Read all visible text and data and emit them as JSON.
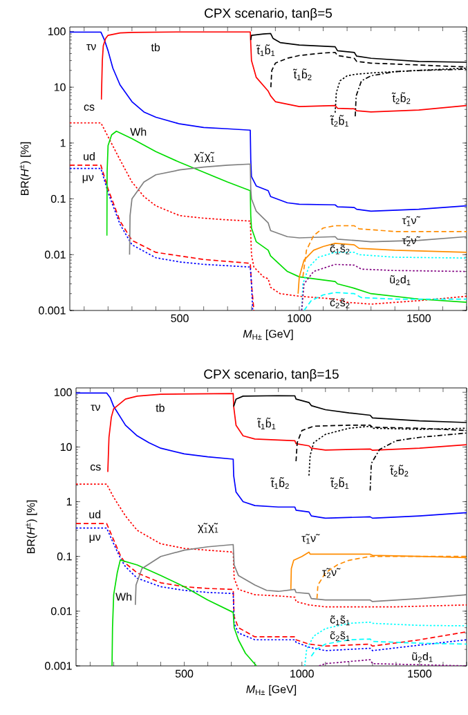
{
  "chart_data": [
    {
      "type": "line",
      "title": "CPX scenario, tanβ=5",
      "xlabel": "*M*$_{H±}$  [GeV]",
      "ylabel": "BR(*H*$^{±}$) [%]",
      "log": true,
      "xlim": [
        40,
        1700
      ],
      "ylim": [
        0.001,
        120
      ],
      "xticks": [
        {
          "value": 100,
          "label": null
        },
        {
          "value": 200,
          "label": null
        },
        {
          "value": 300,
          "label": null
        },
        {
          "value": 400,
          "label": null
        },
        500,
        {
          "value": 600,
          "label": null
        },
        {
          "value": 700,
          "label": null
        },
        {
          "value": 800,
          "label": null
        },
        {
          "value": 900,
          "label": null
        },
        1000,
        {
          "value": 1100,
          "label": null
        },
        {
          "value": 1200,
          "label": null
        },
        {
          "value": 1300,
          "label": null
        },
        {
          "value": 1400,
          "label": null
        },
        1500,
        {
          "value": 1600,
          "label": null
        },
        {
          "value": 1700,
          "label": null
        }
      ],
      "yticks": [
        0.001,
        0.01,
        0.1,
        1,
        10,
        100
      ],
      "series": [
        {
          "color": "#0000ff",
          "line_style": "solid",
          "x": [
            40,
            170,
            185,
            200,
            220,
            250,
            300,
            350,
            400,
            500,
            600,
            700,
            795,
            797,
            800,
            820,
            870,
            880,
            950,
            1000,
            1150,
            1160,
            1230,
            1240,
            1300,
            1500,
            1700
          ],
          "values": [
            97,
            97,
            70,
            45,
            22,
            11,
            5.5,
            3.6,
            2.9,
            2.2,
            1.9,
            1.8,
            1.7,
            0.5,
            0.25,
            0.17,
            0.14,
            0.11,
            0.085,
            0.08,
            0.078,
            0.072,
            0.07,
            0.065,
            0.06,
            0.065,
            0.075
          ]
        },
        {
          "color": "#ff0000",
          "line_style": "solid",
          "x": [
            172,
            176,
            180,
            190,
            200,
            250,
            300,
            500,
            795,
            797,
            800,
            820,
            870,
            880,
            900,
            1000,
            1150,
            1160,
            1230,
            1240,
            1300,
            1500,
            1700
          ],
          "values": [
            6,
            30,
            55,
            75,
            85,
            94,
            96,
            98,
            98,
            60,
            30,
            15,
            8.5,
            7,
            5.5,
            4.5,
            4.7,
            4.2,
            4.1,
            3.8,
            3.6,
            3.9,
            4.7
          ]
        },
        {
          "color": "#000000",
          "line_style": "solid",
          "x": [
            797,
            800,
            850,
            880,
            890,
            920,
            1000,
            1150,
            1160,
            1230,
            1240,
            1300,
            1500,
            1700
          ],
          "values": [
            70,
            85,
            90,
            92,
            75,
            63,
            57,
            53,
            45,
            42,
            36,
            33,
            29,
            28
          ]
        },
        {
          "color": "#000000",
          "line_style": "dashed",
          "x": [
            881,
            885,
            900,
            950,
            1000,
            1100,
            1150,
            1160,
            1230,
            1240,
            1300,
            1500,
            1700
          ],
          "values": [
            10,
            20,
            27,
            33,
            37,
            41,
            42,
            37,
            33,
            29,
            27,
            25,
            23
          ]
        },
        {
          "color": "#000000",
          "line_style": "dotted",
          "x": [
            1150,
            1155,
            1170,
            1200,
            1234,
            1300,
            1500,
            1700
          ],
          "values": [
            3.5,
            8,
            13,
            16,
            17,
            18,
            20,
            22
          ]
        },
        {
          "color": "#000000",
          "line_style": "dashdot",
          "x": [
            1234,
            1238,
            1260,
            1300,
            1400,
            1500,
            1700
          ],
          "values": [
            3,
            7,
            13,
            16,
            19,
            20,
            21
          ]
        },
        {
          "color": "#ff0000",
          "line_style": "dotted",
          "x": [
            40,
            170,
            200,
            250,
            300,
            350,
            400,
            500,
            600,
            700,
            795,
            800,
            810,
            850,
            870,
            880,
            920,
            1000,
            1150,
            1200,
            1300,
            1500,
            1700
          ],
          "values": [
            2.3,
            2.3,
            1.3,
            0.5,
            0.2,
            0.11,
            0.075,
            0.05,
            0.045,
            0.042,
            0.04,
            0.01,
            0.006,
            0.004,
            0.0037,
            0.0026,
            0.002,
            0.0018,
            0.0016,
            0.0014,
            0.0013,
            0.0015,
            0.0018
          ]
        },
        {
          "color": "#ff0000",
          "line_style": "dashed",
          "x": [
            40,
            170,
            200,
            250,
            300,
            400,
            500,
            600,
            795,
            800,
            810
          ],
          "values": [
            0.4,
            0.4,
            0.15,
            0.04,
            0.018,
            0.011,
            0.0095,
            0.0082,
            0.007,
            0.003,
            0.001
          ]
        },
        {
          "color": "#0000ff",
          "line_style": "dotted",
          "x": [
            40,
            170,
            200,
            250,
            300,
            400,
            500,
            600,
            795,
            800,
            805
          ],
          "values": [
            0.35,
            0.35,
            0.13,
            0.035,
            0.015,
            0.0088,
            0.0074,
            0.0067,
            0.006,
            0.003,
            0.001
          ]
        },
        {
          "color": "#00dd00",
          "line_style": "solid",
          "x": [
            195,
            196,
            200,
            215,
            235,
            300,
            400,
            500,
            600,
            700,
            795,
            797,
            800,
            820,
            870,
            880,
            950,
            1000,
            1150,
            1160,
            1230,
            1300,
            1500,
            1700
          ],
          "values": [
            0.022,
            0.3,
            0.9,
            1.4,
            1.63,
            1.2,
            0.7,
            0.45,
            0.3,
            0.2,
            0.14,
            0.05,
            0.03,
            0.017,
            0.012,
            0.0095,
            0.005,
            0.004,
            0.0033,
            0.003,
            0.0025,
            0.002,
            0.0016,
            0.0014
          ]
        },
        {
          "color": "#808080",
          "line_style": "solid",
          "x": [
            290,
            292,
            300,
            350,
            400,
            500,
            600,
            700,
            795,
            797,
            800,
            820,
            870,
            880,
            950,
            1000,
            1150,
            1160,
            1230,
            1300,
            1500,
            1700
          ],
          "values": [
            0.01,
            0.05,
            0.1,
            0.2,
            0.27,
            0.33,
            0.37,
            0.4,
            0.42,
            0.15,
            0.1,
            0.06,
            0.037,
            0.027,
            0.021,
            0.02,
            0.021,
            0.019,
            0.018,
            0.017,
            0.018,
            0.021
          ]
        },
        {
          "color": "#ff8c00",
          "line_style": "dashed",
          "x": [
            1015,
            1030,
            1060,
            1100,
            1150,
            1230,
            1250,
            1400,
            1700
          ],
          "values": [
            0.004,
            0.012,
            0.022,
            0.03,
            0.033,
            0.033,
            0.029,
            0.026,
            0.026
          ]
        },
        {
          "color": "#ff8c00",
          "line_style": "solid",
          "x": [
            995,
            1000,
            1020,
            1060,
            1100,
            1150,
            1230,
            1250,
            1400,
            1700
          ],
          "values": [
            0.002,
            0.004,
            0.008,
            0.012,
            0.014,
            0.016,
            0.015,
            0.013,
            0.012,
            0.011
          ]
        },
        {
          "color": "#00ffff",
          "line_style": "dotted",
          "x": [
            1010,
            1015,
            1040,
            1080,
            1150,
            1230,
            1250,
            1400,
            1700
          ],
          "values": [
            0.001,
            0.003,
            0.006,
            0.009,
            0.011,
            0.011,
            0.01,
            0.009,
            0.0087
          ]
        },
        {
          "color": "#800080",
          "line_style": "dotted",
          "x": [
            1010,
            1020,
            1060,
            1150,
            1230,
            1260,
            1400,
            1700
          ],
          "values": [
            0.001,
            0.003,
            0.005,
            0.0067,
            0.0065,
            0.0055,
            0.0052,
            0.005
          ]
        },
        {
          "color": "#00ffff",
          "line_style": "dashed",
          "x": [
            1020,
            1050,
            1100,
            1150,
            1230,
            1260,
            1400,
            1700
          ],
          "values": [
            0.001,
            0.0015,
            0.0019,
            0.0021,
            0.002,
            0.0017,
            0.0016,
            0.0016
          ]
        }
      ],
      "annotations": [
        "τν",
        "tb",
        "t̃$_{1}$b̃$_{1}$",
        "t̃$_{1}$b̃$_{2}$",
        "t̃$_{2}$b̃$_{2}$",
        "t̃$_{2}$b̃$_{1}$",
        "cs",
        "Wh",
        "χ̃$_{1}$χ̃$_{1}$",
        "ud",
        "μν",
        "τ̃$_{1}$ν̃",
        "τ̃$_{2}$ν̃",
        "c̃$_{1}$s̃$_{2}$",
        "ũ$_{2}$d$_{1}$",
        "c̃$_{2}$s̃$_{2}$"
      ]
    },
    {
      "type": "line",
      "title": "CPX scenario, tanβ=15",
      "xlabel": "*M*$_{H±}$  [GeV]",
      "ylabel": "BR(*H*$^{±}$) [%]",
      "log": true,
      "xlim": [
        40,
        1700
      ],
      "ylim": [
        0.001,
        120
      ],
      "xticks": [
        {
          "value": 100,
          "label": null
        },
        {
          "value": 200,
          "label": null
        },
        {
          "value": 300,
          "label": null
        },
        {
          "value": 400,
          "label": null
        },
        500,
        {
          "value": 600,
          "label": null
        },
        {
          "value": 700,
          "label": null
        },
        {
          "value": 800,
          "label": null
        },
        {
          "value": 900,
          "label": null
        },
        1000,
        {
          "value": 1100,
          "label": null
        },
        {
          "value": 1200,
          "label": null
        },
        {
          "value": 1300,
          "label": null
        },
        {
          "value": 1400,
          "label": null
        },
        1500,
        {
          "value": 1600,
          "label": null
        },
        {
          "value": 1700,
          "label": null
        }
      ],
      "yticks": [
        0.001,
        0.01,
        0.1,
        1,
        10,
        100
      ],
      "series": [
        {
          "color": "#0000ff",
          "line_style": "solid",
          "x": [
            40,
            170,
            185,
            200,
            250,
            300,
            350,
            400,
            500,
            600,
            708,
            710,
            720,
            750,
            800,
            900,
            970,
            975,
            1030,
            1040,
            1100,
            1290,
            1300,
            1500,
            1700
          ],
          "values": [
            97,
            97,
            80,
            55,
            25,
            16,
            12,
            9.5,
            7.5,
            6.6,
            6,
            3,
            1.5,
            1,
            0.85,
            0.8,
            0.8,
            0.7,
            0.65,
            0.55,
            0.5,
            0.53,
            0.5,
            0.55,
            0.63
          ]
        },
        {
          "color": "#ff0000",
          "line_style": "solid",
          "x": [
            175,
            180,
            190,
            200,
            250,
            300,
            400,
            708,
            710,
            720,
            750,
            800,
            970,
            975,
            1030,
            1040,
            1100,
            1290,
            1300,
            1500,
            1700
          ],
          "values": [
            3.5,
            15,
            35,
            50,
            75,
            85,
            92,
            95,
            55,
            25,
            16,
            14,
            13,
            11.5,
            10.5,
            9.5,
            8.8,
            9.2,
            8.7,
            9.5,
            11
          ]
        },
        {
          "color": "#000000",
          "line_style": "solid",
          "x": [
            710,
            720,
            750,
            900,
            970,
            975,
            1030,
            1040,
            1100,
            1200,
            1290,
            1300,
            1500,
            1700
          ],
          "values": [
            55,
            75,
            85,
            87,
            86,
            75,
            65,
            57,
            48,
            42,
            38,
            34,
            30,
            28
          ]
        },
        {
          "color": "#000000",
          "line_style": "dashed",
          "x": [
            975,
            980,
            1000,
            1050,
            1200,
            1290,
            1300,
            1500,
            1700
          ],
          "values": [
            5.5,
            12,
            20,
            24,
            25,
            25,
            23,
            22,
            20
          ]
        },
        {
          "color": "#000000",
          "line_style": "dotted",
          "x": [
            1030,
            1035,
            1050,
            1100,
            1200,
            1290,
            1300,
            1500,
            1700
          ],
          "values": [
            3,
            7,
            12,
            17,
            22,
            24,
            22,
            21,
            22
          ]
        },
        {
          "color": "#000000",
          "line_style": "dashdot",
          "x": [
            1290,
            1295,
            1330,
            1400,
            1500,
            1700
          ],
          "values": [
            1.6,
            5,
            9,
            13,
            15,
            18
          ]
        },
        {
          "color": "#ff0000",
          "line_style": "dotted",
          "x": [
            40,
            170,
            200,
            250,
            300,
            400,
            500,
            600,
            708,
            712,
            730,
            800,
            900,
            970,
            975,
            1030,
            1100,
            1290,
            1400,
            1700
          ],
          "values": [
            2.1,
            2.1,
            1.2,
            0.55,
            0.3,
            0.17,
            0.14,
            0.13,
            0.12,
            0.04,
            0.025,
            0.02,
            0.019,
            0.018,
            0.015,
            0.013,
            0.012,
            0.012,
            0.012,
            0.013
          ]
        },
        {
          "color": "#ff0000",
          "line_style": "dashed",
          "x": [
            40,
            170,
            200,
            230,
            250,
            300,
            400,
            500,
            600,
            708,
            712,
            730,
            800,
            970,
            975,
            1030,
            1100,
            1290,
            1300,
            1500,
            1700
          ],
          "values": [
            0.4,
            0.4,
            0.2,
            0.1,
            0.075,
            0.05,
            0.033,
            0.028,
            0.026,
            0.025,
            0.008,
            0.005,
            0.0034,
            0.0034,
            0.003,
            0.0025,
            0.0023,
            0.0025,
            0.0023,
            0.003,
            0.0042
          ]
        },
        {
          "color": "#0000ff",
          "line_style": "dotted",
          "x": [
            40,
            170,
            200,
            230,
            250,
            300,
            400,
            500,
            600,
            708,
            712,
            730,
            800,
            970,
            975,
            1030,
            1100,
            1290,
            1300,
            1500,
            1700
          ],
          "values": [
            0.33,
            0.33,
            0.17,
            0.09,
            0.065,
            0.04,
            0.028,
            0.024,
            0.022,
            0.021,
            0.006,
            0.004,
            0.003,
            0.003,
            0.0027,
            0.0022,
            0.0019,
            0.0021,
            0.0019,
            0.0024,
            0.003
          ]
        },
        {
          "color": "#00dd00",
          "line_style": "solid",
          "x": [
            193,
            195,
            200,
            215,
            228,
            300,
            400,
            500,
            600,
            708,
            712,
            730,
            760,
            807
          ],
          "values": [
            0.001,
            0.005,
            0.02,
            0.05,
            0.086,
            0.07,
            0.045,
            0.028,
            0.016,
            0.0095,
            0.005,
            0.003,
            0.0017,
            0.001
          ]
        },
        {
          "color": "#808080",
          "line_style": "solid",
          "x": [
            292,
            295,
            320,
            400,
            500,
            600,
            708,
            712,
            730,
            800,
            850,
            900,
            970,
            975,
            1030,
            1040,
            1100,
            1290,
            1300,
            1500,
            1700
          ],
          "values": [
            0.013,
            0.03,
            0.06,
            0.1,
            0.13,
            0.15,
            0.165,
            0.07,
            0.045,
            0.03,
            0.024,
            0.023,
            0.025,
            0.022,
            0.021,
            0.017,
            0.016,
            0.016,
            0.015,
            0.017,
            0.02
          ]
        },
        {
          "color": "#ff8c00",
          "line_style": "solid",
          "x": [
            953,
            955,
            965,
            1000,
            1030,
            1035,
            1290,
            1300,
            1500,
            1700
          ],
          "values": [
            0.025,
            0.06,
            0.085,
            0.1,
            0.12,
            0.11,
            0.11,
            0.105,
            0.1,
            0.095
          ]
        },
        {
          "color": "#ff8c00",
          "line_style": "dashed",
          "x": [
            1064,
            1068,
            1100,
            1150,
            1200,
            1290,
            1400,
            1700
          ],
          "values": [
            0.017,
            0.03,
            0.05,
            0.07,
            0.085,
            0.1,
            0.1,
            0.1
          ]
        },
        {
          "color": "#00ffff",
          "line_style": "dotted",
          "x": [
            1012,
            1020,
            1050,
            1100,
            1200,
            1290,
            1300,
            1500,
            1700
          ],
          "values": [
            0.001,
            0.002,
            0.0035,
            0.0048,
            0.006,
            0.0063,
            0.006,
            0.0055,
            0.0054
          ]
        },
        {
          "color": "#00ffff",
          "line_style": "dashed",
          "x": [
            1040,
            1060,
            1100,
            1200,
            1290,
            1300,
            1500,
            1700
          ],
          "values": [
            0.0015,
            0.002,
            0.0025,
            0.003,
            0.0031,
            0.0028,
            0.0026,
            0.0025
          ]
        },
        {
          "color": "#800080",
          "line_style": "dotted",
          "x": [
            1073,
            1100,
            1200,
            1290,
            1300,
            1500,
            1700
          ],
          "values": [
            0.001,
            0.0011,
            0.0012,
            0.0013,
            0.0011,
            0.00105,
            0.001
          ]
        }
      ],
      "annotations": [
        "τν",
        "tb",
        "t̃$_{1}$b̃$_{1}$",
        "t̃$_{1}$b̃$_{2}$",
        "t̃$_{2}$b̃$_{1}$",
        "t̃$_{2}$b̃$_{2}$",
        "cs",
        "ud",
        "χ̃$_{1}$χ̃$_{1}$",
        "μν",
        "Wh",
        "τ̃$_{1}$ν̃",
        "τ̃$_{2}$ν̃",
        "c̃$_{1}$s̃$_{1}$",
        "c̃$_{2}$s̃$_{1}$",
        "ũ$_{2}$d$_{1}$"
      ]
    }
  ]
}
